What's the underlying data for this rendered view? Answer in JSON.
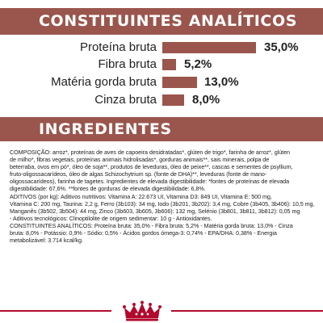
{
  "analiticos": {
    "title": "CONSTITUINTES ANALÍTICOS",
    "rows": [
      {
        "label": "Proteína bruta",
        "value": "35,0%",
        "percent": 35.0
      },
      {
        "label": "Fibra bruta",
        "value": "5,2%",
        "percent": 5.2
      },
      {
        "label": "Matéria gorda bruta",
        "value": "13,0%",
        "percent": 13.0
      },
      {
        "label": "Cinza bruta",
        "value": "8,0%",
        "percent": 8.0
      }
    ]
  },
  "ingredientes": {
    "title": "INGREDIENTES",
    "lines": [
      "COMPOSIÇÃO: arroz*, proteínas de aves de capoeira desidratadas*, glúten de trigo*, farinha de arroz*, glúten",
      "de milho*, fibras vegetais, proteínas animais hidrolisadas*, gorduras animais**, sais minerais, polpa de",
      "beterraba, ovos em pó*, óleo de soja**, produtos de leveduras, óleo de peixe**, cascas e sementes de psyllium,",
      "fruto-oligossacarídeos, óleo de algas Schizochytrium sp. (fonte de DHA)**, leveduras (fonte de mano-",
      "oligossacarídeos), farinha de tagetes. Ingredientes de elevada digestibilidade: *fontes de proteínas de elevada",
      "digestibilidade: 67,6%. **fontes de gorduras de elevada digestibilidade: 6,8%.",
      "ADITIVOS (por kg): Aditivos nutritivos: Vitamina A: 22.673 UI, Vitamina D3: 849 UI, Vitamina E: 500 mg,",
      "Vitamina C: 200 mg, Taurina: 2,2 g, Ferro (3b103): 34 mg, Iodo (3b201, 3b202): 3,4 mg, Cobre (3b405, 3b406): 10,5 mg,",
      "Manganês (3b502, 3b504): 44 mg, Zinco (3b603, 3b605, 3b606): 132 mg, Selénio (3b801, 3b811, 3b812): 0,05 mg",
      "- Aditivos tecnológicos: Clinoptilolite de origem sedimentar: 10 g - Antioxidantes.",
      "CONSTITUINTES ANALÍTICOS: Proteína bruta: 35,0% - Fibra bruta: 5,2% - Matéria gorda bruta: 13,0% - Cinza",
      "bruta: 8,0% - Potássio: 0,9% - Sódio: 0,5% - Ácidos gordos ómega-3: 0,74% - EPA/DHA: 0,38% - Energia",
      "metabolizável: 3.714 kcal/kg."
    ]
  },
  "brand": {
    "logo_icon": "crown-icon",
    "accent_color": "#b20a2c",
    "header_color": "#9a564d"
  }
}
